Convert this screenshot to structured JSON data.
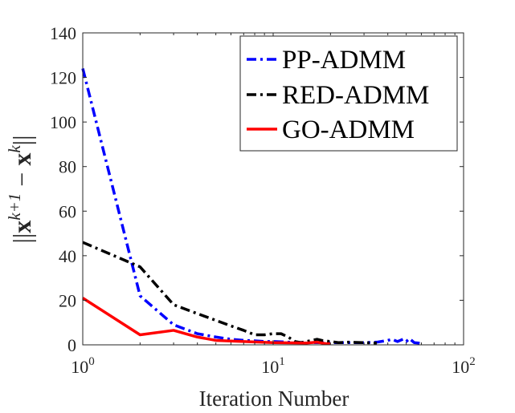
{
  "chart_data": {
    "type": "line",
    "xscale": "log",
    "xlim": [
      1,
      100
    ],
    "ylim": [
      0,
      140
    ],
    "yticks": [
      0,
      20,
      40,
      60,
      80,
      100,
      120,
      140
    ],
    "ytick_labels": [
      "0",
      "20",
      "40",
      "60",
      "80",
      "100",
      "120",
      "140"
    ],
    "xticks": [
      {
        "value": 1,
        "base": "10",
        "exp": "0"
      },
      {
        "value": 10,
        "base": "10",
        "exp": "1"
      },
      {
        "value": 100,
        "base": "10",
        "exp": "2"
      }
    ],
    "xlabel": "Iteration Number",
    "ylabel": {
      "open": "||",
      "x1": "x",
      "sup1": "k+1",
      "minus": "−",
      "x2": "x",
      "sup2": "k",
      "close": "||"
    },
    "legend_position": "top-right",
    "series": [
      {
        "name": "PP-ADMM",
        "color": "#0000ff",
        "style": "dash-dot",
        "x": [
          1,
          2,
          3,
          4,
          5,
          6,
          7,
          8,
          9,
          10,
          12,
          15,
          20,
          25,
          30,
          35,
          40,
          42,
          45,
          48,
          50,
          52,
          55,
          58,
          60
        ],
        "y": [
          124,
          22,
          9,
          5,
          3.5,
          2.5,
          2,
          1.8,
          1.5,
          1.5,
          1.2,
          1,
          1,
          1,
          1,
          1.2,
          2,
          2.5,
          1.5,
          2.5,
          1.5,
          2.8,
          1,
          0.8,
          0.5
        ]
      },
      {
        "name": "RED-ADMM",
        "color": "#000000",
        "style": "dash-dot",
        "x": [
          1,
          2,
          3,
          4,
          5,
          6,
          7,
          8,
          9,
          10,
          11,
          12,
          13,
          14,
          15,
          16,
          17,
          18,
          20,
          22,
          25,
          30,
          35
        ],
        "y": [
          46,
          35,
          18,
          14,
          11,
          8.5,
          6.5,
          4.5,
          4.5,
          5,
          5,
          3.5,
          1.5,
          1,
          1.5,
          2,
          2.5,
          2,
          1.5,
          1,
          1.2,
          1,
          0.8
        ]
      },
      {
        "name": "GO-ADMM",
        "color": "#ff0000",
        "style": "solid",
        "x": [
          1,
          2,
          3,
          4,
          5,
          7,
          10,
          15,
          17,
          19,
          20
        ],
        "y": [
          21,
          4.5,
          6.5,
          3.5,
          2,
          1.5,
          1,
          0.8,
          1.2,
          0.5,
          0.5
        ]
      }
    ]
  }
}
